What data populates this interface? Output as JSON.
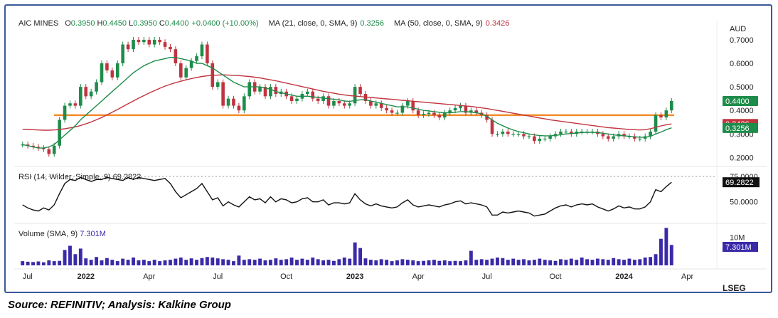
{
  "chart_data": {
    "type": "candlestick",
    "currency_label": "AUD",
    "legend": {
      "symbol": "AIC MINES",
      "open_label": "O",
      "open": "0.3950",
      "high_label": "H",
      "high": "0.4450",
      "low_label": "L",
      "low": "0.3950",
      "close_label": "C",
      "close": "0.4400",
      "change": "+0.0400 (+10.00%)",
      "ma21_label": "MA (21, close, 0, SMA, 9)",
      "ma21_value": "0.3256",
      "ma50_label": "MA (50, close, 0, SMA, 9)",
      "ma50_value": "0.3426"
    },
    "price_axis": {
      "ticks": [
        {
          "value": 0.7,
          "label": "0.7000"
        },
        {
          "value": 0.6,
          "label": "0.6000"
        },
        {
          "value": 0.5,
          "label": "0.5000"
        },
        {
          "value": 0.4,
          "label": "0.4000"
        },
        {
          "value": 0.3,
          "label": "0.3000"
        },
        {
          "value": 0.2,
          "label": "0.2000"
        }
      ],
      "badges": [
        {
          "value": 0.44,
          "label": "0.4400",
          "color": "#1e8c4a"
        },
        {
          "value": 0.3426,
          "label": "0.3426",
          "color": "#c0343f"
        },
        {
          "value": 0.3256,
          "label": "0.3256",
          "color": "#1e8c4a"
        }
      ]
    },
    "support_line": {
      "value": 0.38,
      "color": "#f28c28"
    },
    "x_axis": [
      {
        "index": 0,
        "label": "Jul"
      },
      {
        "index": 12,
        "label": "2022"
      },
      {
        "index": 24,
        "label": "Apr"
      },
      {
        "index": 37,
        "label": "Jul"
      },
      {
        "index": 50,
        "label": "Oct"
      },
      {
        "index": 63,
        "label": "2023"
      },
      {
        "index": 75,
        "label": "Apr"
      },
      {
        "index": 88,
        "label": "Jul"
      },
      {
        "index": 101,
        "label": "Oct"
      },
      {
        "index": 114,
        "label": "2024"
      },
      {
        "index": 126,
        "label": "Apr"
      }
    ],
    "closes": [
      0.255,
      0.25,
      0.245,
      0.24,
      0.235,
      0.215,
      0.25,
      0.36,
      0.42,
      0.43,
      0.42,
      0.5,
      0.46,
      0.48,
      0.52,
      0.6,
      0.57,
      0.54,
      0.6,
      0.68,
      0.66,
      0.7,
      0.69,
      0.7,
      0.68,
      0.7,
      0.69,
      0.67,
      0.66,
      0.6,
      0.54,
      0.58,
      0.61,
      0.63,
      0.68,
      0.6,
      0.5,
      0.52,
      0.42,
      0.45,
      0.42,
      0.4,
      0.46,
      0.52,
      0.48,
      0.5,
      0.46,
      0.5,
      0.47,
      0.48,
      0.46,
      0.44,
      0.45,
      0.47,
      0.48,
      0.45,
      0.44,
      0.46,
      0.42,
      0.44,
      0.43,
      0.42,
      0.43,
      0.5,
      0.47,
      0.44,
      0.42,
      0.43,
      0.41,
      0.4,
      0.39,
      0.39,
      0.42,
      0.44,
      0.4,
      0.38,
      0.385,
      0.39,
      0.38,
      0.37,
      0.39,
      0.4,
      0.41,
      0.42,
      0.39,
      0.4,
      0.39,
      0.38,
      0.36,
      0.3,
      0.3,
      0.31,
      0.3,
      0.3,
      0.3,
      0.29,
      0.29,
      0.27,
      0.28,
      0.28,
      0.29,
      0.3,
      0.31,
      0.31,
      0.3,
      0.31,
      0.31,
      0.31,
      0.31,
      0.3,
      0.29,
      0.28,
      0.29,
      0.3,
      0.29,
      0.29,
      0.28,
      0.28,
      0.29,
      0.31,
      0.38,
      0.37,
      0.4,
      0.44
    ],
    "ma21": [
      0.255,
      0.25,
      0.245,
      0.24,
      0.24,
      0.245,
      0.255,
      0.275,
      0.295,
      0.315,
      0.335,
      0.36,
      0.38,
      0.4,
      0.42,
      0.44,
      0.46,
      0.48,
      0.5,
      0.52,
      0.54,
      0.56,
      0.575,
      0.59,
      0.6,
      0.61,
      0.615,
      0.62,
      0.625,
      0.625,
      0.62,
      0.615,
      0.61,
      0.6,
      0.6,
      0.59,
      0.58,
      0.565,
      0.55,
      0.535,
      0.52,
      0.51,
      0.5,
      0.5,
      0.5,
      0.5,
      0.495,
      0.49,
      0.48,
      0.475,
      0.47,
      0.465,
      0.46,
      0.46,
      0.46,
      0.458,
      0.455,
      0.452,
      0.45,
      0.447,
      0.445,
      0.44,
      0.438,
      0.442,
      0.445,
      0.445,
      0.44,
      0.435,
      0.43,
      0.425,
      0.42,
      0.415,
      0.415,
      0.415,
      0.41,
      0.405,
      0.4,
      0.398,
      0.395,
      0.392,
      0.39,
      0.39,
      0.392,
      0.395,
      0.395,
      0.393,
      0.39,
      0.385,
      0.375,
      0.36,
      0.345,
      0.335,
      0.325,
      0.317,
      0.31,
      0.305,
      0.3,
      0.296,
      0.293,
      0.292,
      0.292,
      0.294,
      0.297,
      0.3,
      0.302,
      0.304,
      0.306,
      0.307,
      0.307,
      0.306,
      0.303,
      0.3,
      0.296,
      0.294,
      0.292,
      0.29,
      0.288,
      0.286,
      0.286,
      0.29,
      0.3,
      0.308,
      0.318,
      0.326
    ],
    "ma50": [
      0.32,
      0.319,
      0.318,
      0.317,
      0.316,
      0.316,
      0.317,
      0.319,
      0.322,
      0.326,
      0.33,
      0.336,
      0.343,
      0.351,
      0.36,
      0.37,
      0.381,
      0.392,
      0.404,
      0.416,
      0.428,
      0.44,
      0.452,
      0.463,
      0.474,
      0.484,
      0.494,
      0.503,
      0.511,
      0.518,
      0.524,
      0.53,
      0.535,
      0.54,
      0.544,
      0.547,
      0.549,
      0.55,
      0.551,
      0.55,
      0.549,
      0.548,
      0.546,
      0.544,
      0.541,
      0.538,
      0.534,
      0.53,
      0.526,
      0.521,
      0.516,
      0.511,
      0.506,
      0.501,
      0.496,
      0.491,
      0.486,
      0.481,
      0.477,
      0.473,
      0.469,
      0.466,
      0.463,
      0.461,
      0.459,
      0.457,
      0.455,
      0.453,
      0.451,
      0.449,
      0.447,
      0.445,
      0.443,
      0.441,
      0.439,
      0.437,
      0.435,
      0.433,
      0.431,
      0.429,
      0.427,
      0.425,
      0.423,
      0.421,
      0.419,
      0.417,
      0.414,
      0.411,
      0.408,
      0.404,
      0.4,
      0.396,
      0.392,
      0.388,
      0.384,
      0.38,
      0.376,
      0.372,
      0.368,
      0.364,
      0.36,
      0.357,
      0.354,
      0.351,
      0.348,
      0.345,
      0.342,
      0.339,
      0.336,
      0.333,
      0.33,
      0.327,
      0.325,
      0.323,
      0.321,
      0.319,
      0.318,
      0.317,
      0.318,
      0.322,
      0.328,
      0.334,
      0.339,
      0.3426
    ],
    "rsi": {
      "label": "RSI (14, Wilder, Simple, 9)",
      "value": "69.2822",
      "ticks": [
        {
          "value": 75,
          "label": "75.0000"
        },
        {
          "value": 50,
          "label": "50.0000"
        }
      ],
      "values": [
        47,
        44,
        42,
        41,
        44,
        42,
        47,
        58,
        68,
        72,
        71,
        74,
        72,
        70,
        72,
        72,
        74,
        73,
        72,
        71,
        74,
        72,
        74,
        73,
        72,
        71,
        72,
        73,
        68,
        60,
        54,
        57,
        60,
        63,
        68,
        60,
        52,
        54,
        46,
        50,
        47,
        45,
        50,
        55,
        52,
        53,
        49,
        55,
        50,
        53,
        52,
        49,
        50,
        53,
        54,
        50,
        50,
        52,
        47,
        49,
        49,
        48,
        49,
        58,
        52,
        48,
        46,
        48,
        46,
        45,
        44,
        45,
        49,
        52,
        47,
        45,
        46,
        47,
        46,
        45,
        47,
        48,
        50,
        51,
        48,
        49,
        48,
        47,
        45,
        37,
        37,
        40,
        39,
        40,
        41,
        40,
        39,
        36,
        37,
        38,
        41,
        44,
        46,
        47,
        45,
        47,
        48,
        47,
        48,
        45,
        43,
        41,
        43,
        46,
        44,
        45,
        43,
        43,
        45,
        50,
        62,
        60,
        65,
        69.28
      ]
    },
    "volume": {
      "label": "Volume (SMA, 9)",
      "value": "7.301M",
      "ticks": [
        {
          "value": 10,
          "label": "10M"
        }
      ],
      "values": [
        1.5,
        1.3,
        1.2,
        1.4,
        1.1,
        1.8,
        1.5,
        1.6,
        5.5,
        7.0,
        4.0,
        6.0,
        2.5,
        2.0,
        3.0,
        1.8,
        2.6,
        2.0,
        1.5,
        2.4,
        2.0,
        2.8,
        1.8,
        2.0,
        1.5,
        2.0,
        1.5,
        1.8,
        2.0,
        2.4,
        2.8,
        2.0,
        2.5,
        2.0,
        2.6,
        3.0,
        2.8,
        2.5,
        2.2,
        2.0,
        1.5,
        3.5,
        2.0,
        2.2,
        2.0,
        2.4,
        1.8,
        2.0,
        2.5,
        2.0,
        2.2,
        2.8,
        2.0,
        2.4,
        2.0,
        2.8,
        2.2,
        1.8,
        2.0,
        1.6,
        2.2,
        2.8,
        2.4,
        8.2,
        6.2,
        2.5,
        2.0,
        1.8,
        2.2,
        2.0,
        1.5,
        1.8,
        2.2,
        2.0,
        1.8,
        1.5,
        1.6,
        1.8,
        2.0,
        1.6,
        1.8,
        1.5,
        1.6,
        1.5,
        1.8,
        5.2,
        2.0,
        2.2,
        2.0,
        2.4,
        2.8,
        2.6,
        2.0,
        2.4,
        2.0,
        2.2,
        1.8,
        2.0,
        2.4,
        2.0,
        1.8,
        1.6,
        2.2,
        2.0,
        2.4,
        2.0,
        2.8,
        2.2,
        2.0,
        2.4,
        2.2,
        2.0,
        2.6,
        2.2,
        2.0,
        2.4,
        2.0,
        2.2,
        2.8,
        3.0,
        4.0,
        9.5,
        13.4,
        7.301
      ]
    }
  },
  "footer": {
    "source": "Source: REFINITIV; Analysis: Kalkine Group",
    "logo": "LSEG"
  }
}
